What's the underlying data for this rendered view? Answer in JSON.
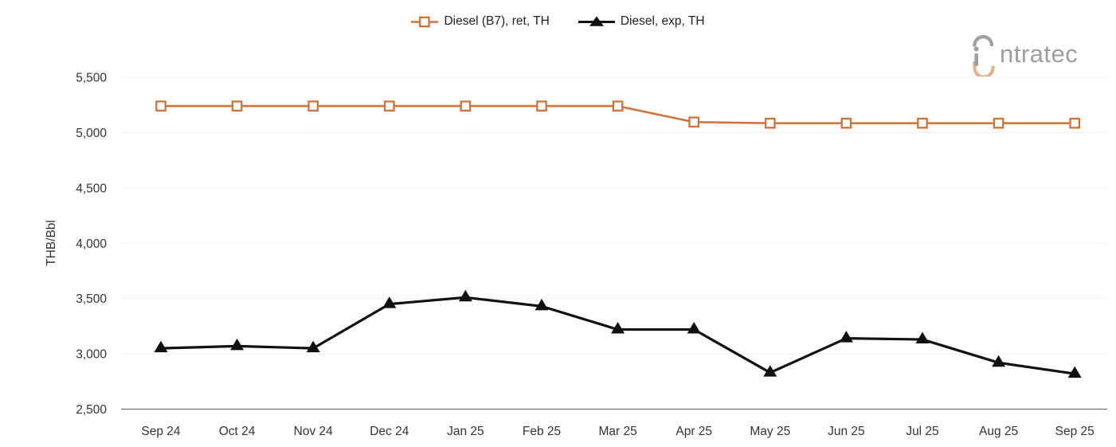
{
  "legend": {
    "items": [
      {
        "label": "Diesel (B7), ret, TH",
        "marker": "open-square",
        "color": "#ce7339"
      },
      {
        "label": "Diesel, exp, TH",
        "marker": "filled-triangle",
        "color": "#111111"
      }
    ]
  },
  "logo": {
    "brand": "intratec",
    "text_after_icon": "ntratec"
  },
  "chart_data": {
    "type": "line",
    "title": "",
    "xlabel": "",
    "ylabel": "THB/Bbl",
    "categories": [
      "Sep 24",
      "Oct 24",
      "Nov 24",
      "Dec 24",
      "Jan 25",
      "Feb 25",
      "Mar 25",
      "Apr 25",
      "May 25",
      "Jun 25",
      "Jul 25",
      "Aug 25",
      "Sep 25"
    ],
    "series": [
      {
        "name": "Diesel (B7), ret, TH",
        "color": "#ce7339",
        "marker": "open-square",
        "values": [
          5240,
          5240,
          5240,
          5240,
          5240,
          5240,
          5240,
          5095,
          5085,
          5085,
          5085,
          5085,
          5085
        ]
      },
      {
        "name": "Diesel, exp, TH",
        "color": "#111111",
        "marker": "filled-triangle",
        "values": [
          3050,
          3070,
          3050,
          3450,
          3510,
          3430,
          3220,
          3220,
          2830,
          3140,
          3130,
          2920,
          2820
        ]
      }
    ],
    "ylim": [
      2500,
      5500
    ],
    "yticks": [
      2500,
      3000,
      3500,
      4000,
      4500,
      5000,
      5500
    ],
    "ytick_labels": [
      "2,500",
      "3,000",
      "3,500",
      "4,000",
      "4,500",
      "5,000",
      "5,500"
    ],
    "grid": "horizontal",
    "legend_position": "top-center"
  },
  "colors": {
    "background": "#ffffff",
    "grid": "#f0f0f0",
    "axis_line": "#6f6f6f",
    "text": "#333333",
    "logo_gray": "#9e9e9e",
    "logo_tan": "#ddb48e"
  }
}
